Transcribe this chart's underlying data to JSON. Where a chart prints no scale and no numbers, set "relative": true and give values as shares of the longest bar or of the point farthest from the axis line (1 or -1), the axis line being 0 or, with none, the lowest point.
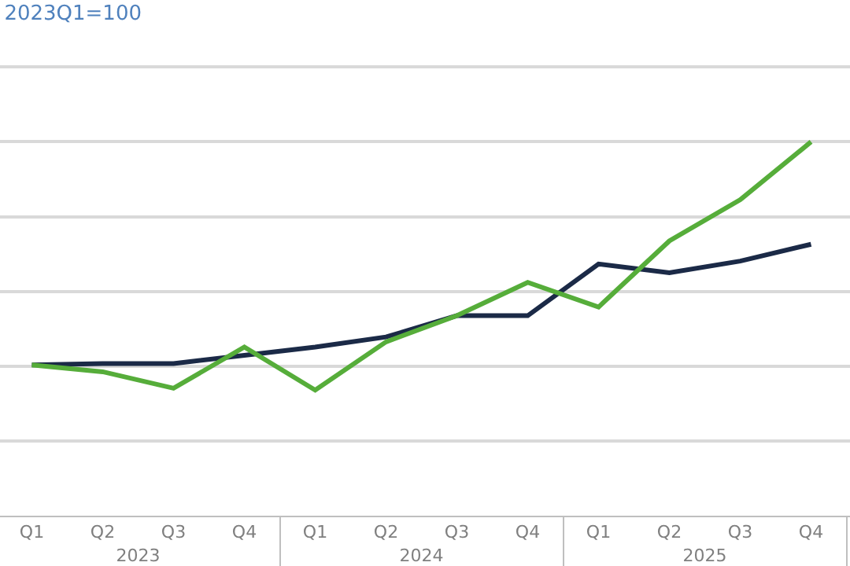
{
  "chart_data": {
    "type": "line",
    "title": "2023Q1=100",
    "relative": true,
    "grid": "y",
    "legend": false,
    "categories": [
      "Q1",
      "Q2",
      "Q3",
      "Q4",
      "Q1",
      "Q2",
      "Q3",
      "Q4",
      "Q1",
      "Q2",
      "Q3",
      "Q4"
    ],
    "annotations": [
      "2023",
      "2024",
      "2025"
    ],
    "series": [
      {
        "color": "#1b2a47",
        "values": [
          0.403,
          0.407,
          0.407,
          0.429,
          0.451,
          0.478,
          0.535,
          0.535,
          0.673,
          0.65,
          0.681,
          0.726
        ]
      },
      {
        "color": "#56ad3a",
        "values": [
          0.403,
          0.385,
          0.341,
          0.451,
          0.336,
          0.465,
          0.535,
          0.624,
          0.558,
          0.735,
          0.845,
          1.0
        ]
      }
    ]
  }
}
